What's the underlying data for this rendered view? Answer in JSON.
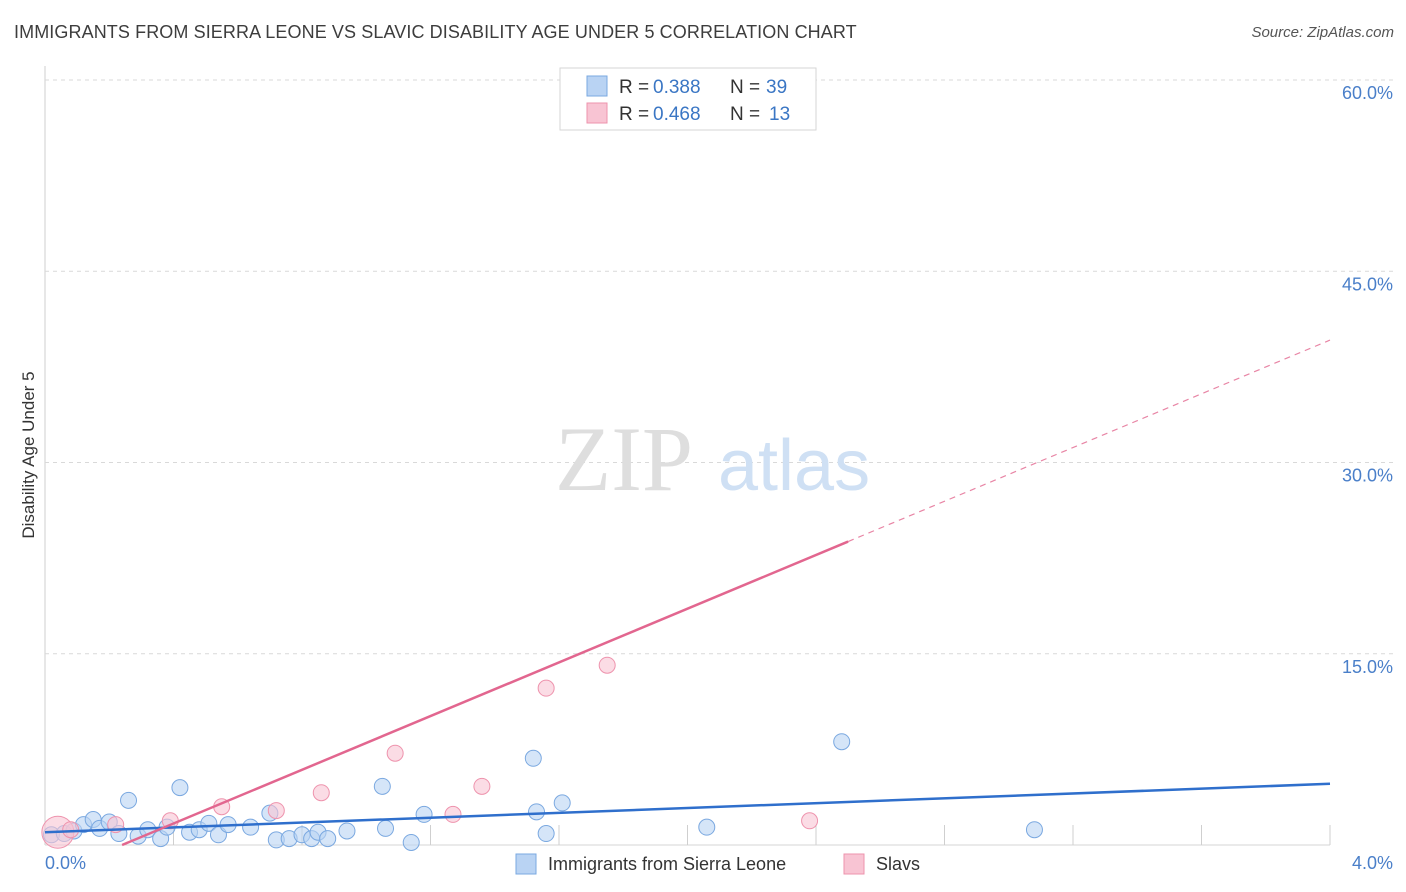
{
  "header": {
    "title": "IMMIGRANTS FROM SIERRA LEONE VS SLAVIC DISABILITY AGE UNDER 5 CORRELATION CHART",
    "source": "Source: ZipAtlas.com"
  },
  "watermark": {
    "zip": "ZIP",
    "atlas": "atlas"
  },
  "colors": {
    "blue_fill": "#b9d3f3",
    "blue_stroke": "#7aa8e0",
    "blue_line": "#2f6fcc",
    "pink_fill": "#f8c4d3",
    "pink_stroke": "#ee93ad",
    "pink_line": "#e2668f",
    "grid": "#d9d9d9",
    "tick_text": "#4a7fc9"
  },
  "legend": {
    "rows": [
      {
        "r_label": "R = ",
        "r_value": "0.388",
        "n_label": "N = ",
        "n_value": "39"
      },
      {
        "r_label": "R = ",
        "r_value": "0.468",
        "n_label": "N = ",
        "n_value": "13"
      }
    ]
  },
  "chart_data": {
    "type": "scatter",
    "title": "IMMIGRANTS FROM SIERRA LEONE VS SLAVIC DISABILITY AGE UNDER 5 CORRELATION CHART",
    "xlabel": "",
    "ylabel": "Disability Age Under 5",
    "xlim": [
      0,
      4.0
    ],
    "ylim": [
      0,
      60
    ],
    "x_tick_labels": [
      "0.0%",
      "4.0%"
    ],
    "y_ticks": [
      15,
      30,
      45,
      60
    ],
    "y_tick_labels": [
      "15.0%",
      "30.0%",
      "45.0%",
      "60.0%"
    ],
    "grid": true,
    "series": [
      {
        "name": "Immigrants from Sierra Leone",
        "color": "blue",
        "points": [
          [
            0.02,
            0.8
          ],
          [
            0.06,
            0.9
          ],
          [
            0.09,
            1.1
          ],
          [
            0.12,
            1.6
          ],
          [
            0.15,
            2.0
          ],
          [
            0.17,
            1.3
          ],
          [
            0.2,
            1.8
          ],
          [
            0.23,
            0.9
          ],
          [
            0.26,
            3.5
          ],
          [
            0.29,
            0.7
          ],
          [
            0.32,
            1.2
          ],
          [
            0.36,
            0.5
          ],
          [
            0.38,
            1.4
          ],
          [
            0.42,
            4.5
          ],
          [
            0.45,
            1.0
          ],
          [
            0.48,
            1.2
          ],
          [
            0.51,
            1.7
          ],
          [
            0.54,
            0.8
          ],
          [
            0.57,
            1.6
          ],
          [
            0.64,
            1.4
          ],
          [
            0.7,
            2.5
          ],
          [
            0.72,
            0.4
          ],
          [
            0.76,
            0.5
          ],
          [
            0.8,
            0.8
          ],
          [
            0.83,
            0.5
          ],
          [
            0.85,
            1.0
          ],
          [
            0.88,
            0.5
          ],
          [
            0.94,
            1.1
          ],
          [
            1.05,
            4.6
          ],
          [
            1.06,
            1.3
          ],
          [
            1.14,
            0.2
          ],
          [
            1.18,
            2.4
          ],
          [
            1.52,
            6.8
          ],
          [
            1.53,
            2.6
          ],
          [
            1.56,
            0.9
          ],
          [
            1.61,
            3.3
          ],
          [
            2.06,
            1.4
          ],
          [
            2.48,
            8.1
          ],
          [
            3.08,
            1.2
          ]
        ],
        "trend": {
          "x": [
            0.0,
            4.0
          ],
          "y": [
            1.0,
            4.8
          ]
        }
      },
      {
        "name": "Slavs",
        "color": "pink",
        "points": [
          [
            0.04,
            1.0
          ],
          [
            0.08,
            1.2
          ],
          [
            0.22,
            1.6
          ],
          [
            0.39,
            1.9
          ],
          [
            0.55,
            3.0
          ],
          [
            0.72,
            2.7
          ],
          [
            0.86,
            4.1
          ],
          [
            1.09,
            7.2
          ],
          [
            1.27,
            2.4
          ],
          [
            1.36,
            4.6
          ],
          [
            1.56,
            12.3
          ],
          [
            1.75,
            14.1
          ],
          [
            2.38,
            1.9
          ]
        ],
        "trend": {
          "x": [
            0.24,
            2.5
          ],
          "y": [
            0.0,
            23.8
          ],
          "dashed_to": {
            "x": 4.0,
            "y": 39.6
          }
        }
      }
    ]
  }
}
